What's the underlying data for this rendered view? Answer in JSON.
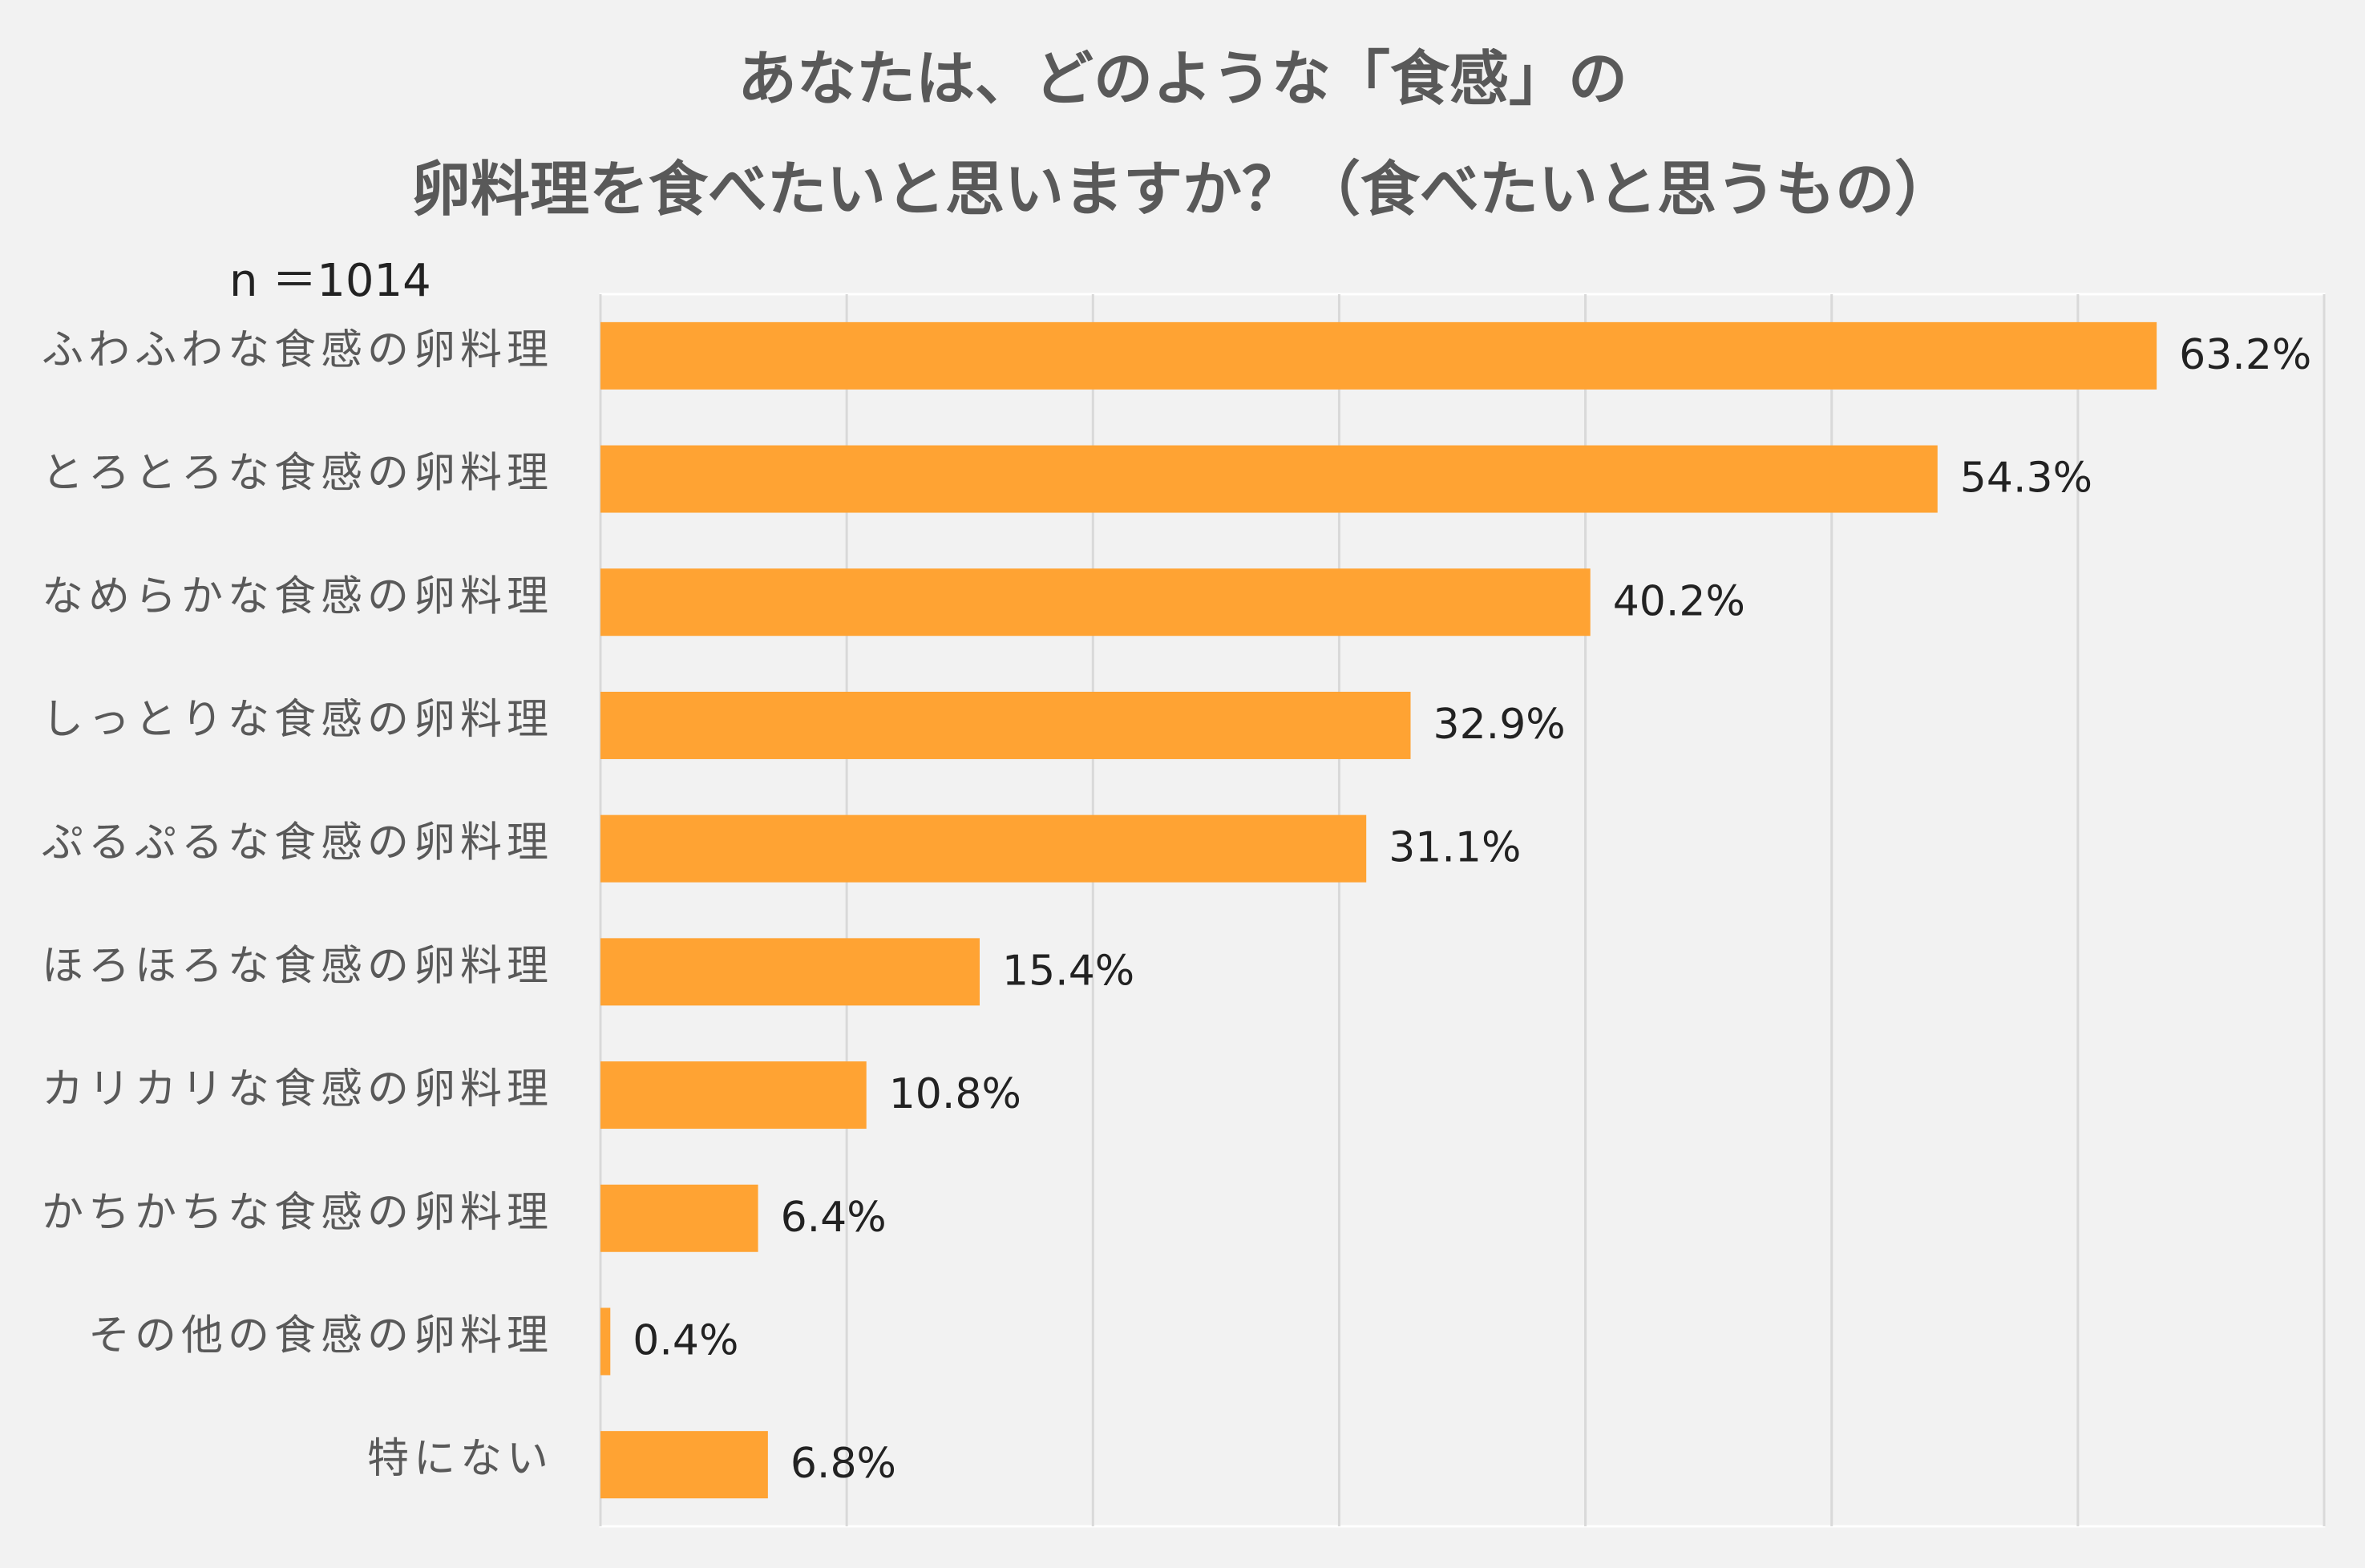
{
  "chart_data": {
    "type": "barh",
    "title": [
      "あなたは、どのような「食感」の",
      "卵料理を食べたいと思いますか？（食べたいと思うもの）"
    ],
    "subtitle": "n ＝1014",
    "categories": [
      "ふわふわな食感の卵料理",
      "とろとろな食感の卵料理",
      "なめらかな食感の卵料理",
      "しっとりな食感の卵料理",
      "ぷるぷるな食感の卵料理",
      "ほろほろな食感の卵料理",
      "カリカリな食感の卵料理",
      "かちかちな食感の卵料理",
      "その他の食感の卵料理",
      "特にない"
    ],
    "values": [
      63.2,
      54.3,
      40.2,
      32.9,
      31.1,
      15.4,
      10.8,
      6.4,
      0.4,
      6.8
    ],
    "value_labels": [
      "63.2%",
      "54.3%",
      "40.2%",
      "32.9%",
      "31.1%",
      "15.4%",
      "10.8%",
      "6.4%",
      "0.4%",
      "6.8%"
    ],
    "color": "#ffa333",
    "xlim": [
      0,
      70
    ],
    "xticks": [
      0,
      10,
      20,
      30,
      40,
      50,
      60,
      70
    ],
    "grid": true
  }
}
